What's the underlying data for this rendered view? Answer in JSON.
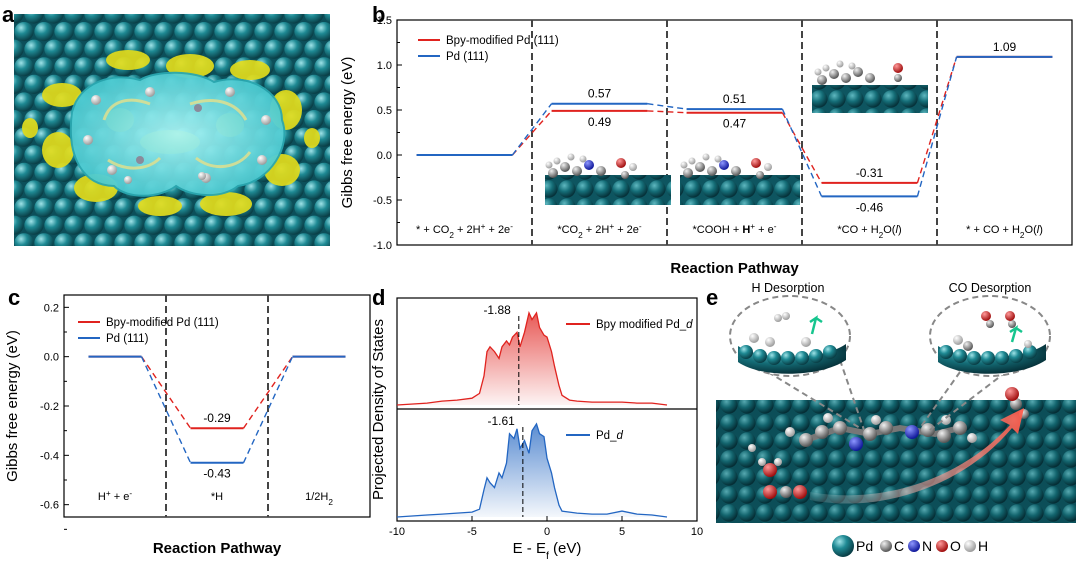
{
  "colors": {
    "red": "#e0231f",
    "blue": "#2366c2",
    "pd": "#1f7f8a",
    "yellow": "#d9d21a",
    "cyan": "#3fd0d6"
  },
  "panels": {
    "a": {
      "label": "a"
    },
    "e": {
      "label": "e",
      "h_desorption": "H Desorption",
      "co_desorption": "CO Desorption",
      "element_key": [
        {
          "symbol": "Pd",
          "color": "#1f7f8a"
        },
        {
          "symbol": "C",
          "color": "#8a8a8a"
        },
        {
          "symbol": "N",
          "color": "#1f2fd6"
        },
        {
          "symbol": "O",
          "color": "#d42020"
        },
        {
          "symbol": "H",
          "color": "#e6e6e6"
        }
      ]
    }
  },
  "chart_data": [
    {
      "id": "b",
      "label": "b",
      "type": "line",
      "ylabel": "Gibbs free energy (eV)",
      "xlabel": "Reaction Pathway",
      "ylim": [
        -1.0,
        1.5
      ],
      "yticks": [
        "-1.0",
        "-0.5",
        "0.0",
        "0.5",
        "1.0",
        "1.5"
      ],
      "stages": [
        {
          "parts": [
            [
              "* + CO",
              ""
            ],
            [
              "2",
              "sub"
            ],
            [
              " + 2H",
              ""
            ],
            [
              "+",
              "sup"
            ],
            [
              " + 2e",
              ""
            ],
            [
              "-",
              "sup"
            ]
          ]
        },
        {
          "parts": [
            [
              "*CO",
              ""
            ],
            [
              "2",
              "sub"
            ],
            [
              " + 2H",
              ""
            ],
            [
              "+",
              "sup"
            ],
            [
              " + 2e",
              ""
            ],
            [
              "-",
              "sup"
            ]
          ]
        },
        {
          "parts": [
            [
              "*COOH + ",
              ""
            ],
            [
              "H",
              "bold"
            ],
            [
              "+",
              "sup"
            ],
            [
              " + e",
              ""
            ],
            [
              "-",
              "sup"
            ]
          ]
        },
        {
          "parts": [
            [
              "*CO + H",
              ""
            ],
            [
              "2",
              "sub"
            ],
            [
              "O(",
              ""
            ],
            [
              "l",
              "ital"
            ],
            [
              ")",
              ""
            ]
          ]
        },
        {
          "parts": [
            [
              "* + CO + H",
              ""
            ],
            [
              "2",
              "sub"
            ],
            [
              "O(",
              ""
            ],
            [
              "l",
              "ital"
            ],
            [
              ")",
              ""
            ]
          ]
        }
      ],
      "series": [
        {
          "name": "Bpy-modified Pd (111)",
          "color": "#e0231f",
          "values": [
            0.0,
            0.49,
            0.47,
            -0.31,
            1.09
          ],
          "labels": [
            "",
            "0.49",
            "0.47",
            "-0.31",
            "1.09"
          ]
        },
        {
          "name": "Pd (111)",
          "color": "#2366c2",
          "values": [
            0.0,
            0.57,
            0.51,
            -0.46,
            1.09
          ],
          "labels": [
            "",
            "0.57",
            "0.51",
            "-0.46",
            ""
          ]
        }
      ]
    },
    {
      "id": "c",
      "label": "c",
      "type": "line",
      "ylabel": "Gibbs free energy (eV)",
      "xlabel": "Reaction Pathway",
      "ylim": [
        -0.65,
        0.25
      ],
      "yticks": [
        "0.2",
        "0.0",
        "-0.2",
        "-0.4",
        "-0.6"
      ],
      "stages": [
        {
          "parts": [
            [
              "H",
              ""
            ],
            [
              "+",
              "sup"
            ],
            [
              " + e",
              ""
            ],
            [
              "-",
              "sup"
            ]
          ]
        },
        {
          "parts": [
            [
              "*H",
              ""
            ]
          ]
        },
        {
          "parts": [
            [
              "1/2H",
              ""
            ],
            [
              "2",
              "sub"
            ]
          ]
        }
      ],
      "series": [
        {
          "name": "Bpy-modified Pd (111)",
          "color": "#e0231f",
          "values": [
            0.0,
            -0.29,
            0.0
          ],
          "labels": [
            "",
            "-0.29",
            ""
          ]
        },
        {
          "name": "Pd (111)",
          "color": "#2366c2",
          "values": [
            0.0,
            -0.43,
            0.0
          ],
          "labels": [
            "",
            "-0.43",
            ""
          ]
        }
      ]
    },
    {
      "id": "d",
      "label": "d",
      "type": "area",
      "ylabel": "Projected Density of States",
      "xlabel": "E - E",
      "xlabel_sub": "f",
      "xlabel_unit": " (eV)",
      "xlim": [
        -10,
        10
      ],
      "xticks": [
        "-10",
        "-5",
        "0",
        "5",
        "10"
      ],
      "series": [
        {
          "name": "Bpy modified Pd_d",
          "legend_main": "Bpy modified Pd_",
          "legend_ital": "d",
          "color": "#e0231f",
          "d_band_center": -1.88,
          "center_label": "-1.88",
          "x": [
            -10,
            -8,
            -7,
            -6,
            -5,
            -4.5,
            -4.2,
            -4.0,
            -3.8,
            -3.5,
            -3.2,
            -3.0,
            -2.7,
            -2.5,
            -2.3,
            -2.0,
            -1.8,
            -1.5,
            -1.2,
            -1.0,
            -0.7,
            -0.5,
            -0.2,
            0.0,
            0.3,
            0.5,
            0.8,
            1.0,
            1.5,
            2,
            3,
            4,
            5,
            6,
            7,
            8
          ],
          "y": [
            0,
            0.02,
            0.04,
            0.05,
            0.07,
            0.12,
            0.3,
            0.55,
            0.6,
            0.55,
            0.48,
            0.6,
            0.66,
            0.62,
            0.7,
            0.75,
            0.6,
            0.75,
            0.95,
            0.88,
            0.95,
            0.8,
            0.72,
            0.7,
            0.55,
            0.4,
            0.2,
            0.1,
            0.05,
            0.04,
            0.03,
            0.03,
            0.03,
            0.02,
            0.02,
            0
          ]
        },
        {
          "name": "Pd_d",
          "legend_main": "Pd_",
          "legend_ital": "d",
          "color": "#2366c2",
          "d_band_center": -1.61,
          "center_label": "-1.61",
          "x": [
            -10,
            -8,
            -7,
            -6,
            -5,
            -4.5,
            -4.2,
            -4.0,
            -3.8,
            -3.5,
            -3.2,
            -3.0,
            -2.7,
            -2.5,
            -2.2,
            -2.0,
            -1.8,
            -1.5,
            -1.2,
            -1.0,
            -0.7,
            -0.5,
            -0.2,
            0.0,
            0.3,
            0.5,
            0.8,
            1.0,
            1.5,
            2,
            3,
            4,
            5,
            6,
            7,
            8
          ],
          "y": [
            0,
            0.02,
            0.03,
            0.04,
            0.05,
            0.08,
            0.28,
            0.4,
            0.35,
            0.3,
            0.45,
            0.4,
            0.55,
            0.85,
            0.8,
            0.9,
            0.7,
            0.78,
            0.65,
            0.88,
            0.95,
            0.85,
            0.82,
            0.6,
            0.45,
            0.3,
            0.12,
            0.06,
            0.05,
            0.04,
            0.03,
            0.03,
            0.06,
            0.03,
            0.02,
            0
          ]
        }
      ]
    }
  ]
}
